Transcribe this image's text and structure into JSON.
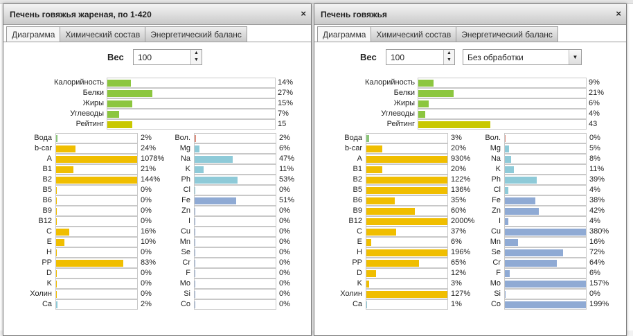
{
  "colors": {
    "macro": "#8cc63f",
    "rating": "#c9c800",
    "vitamin": "#f0be00",
    "water": "#8cc67a",
    "ash": "#e09080",
    "mineral_light": "#8ecad8",
    "mineral_dark": "#8faad4"
  },
  "windows": [
    {
      "title": "Печень говяжья жареная, по 1-420",
      "close": "×",
      "tabs": [
        "Диаграмма",
        "Химический состав",
        "Энергетический баланс"
      ],
      "weight_label": "Вес",
      "weight_value": "100",
      "processing": null,
      "macro": [
        {
          "label": "Калорийность",
          "value": 14,
          "text": "14%"
        },
        {
          "label": "Белки",
          "value": 27,
          "text": "27%"
        },
        {
          "label": "Жиры",
          "value": 15,
          "text": "15%"
        },
        {
          "label": "Углеводы",
          "value": 7,
          "text": "7%"
        },
        {
          "label": "Рейтинг",
          "value": 15,
          "text": "15",
          "rating": true
        }
      ],
      "left": [
        [
          "Вода",
          2,
          "water"
        ],
        [
          "b-car",
          24
        ],
        [
          "A",
          1078
        ],
        [
          "B1",
          21
        ],
        [
          "B2",
          144
        ],
        [
          "B5",
          0
        ],
        [
          "B6",
          0
        ],
        [
          "B9",
          0
        ],
        [
          "B12",
          0
        ],
        [
          "C",
          16
        ],
        [
          "E",
          10
        ],
        [
          "H",
          0
        ],
        [
          "PP",
          83
        ],
        [
          "D",
          0
        ],
        [
          "K",
          0
        ],
        [
          "Холин",
          0
        ],
        [
          "Ca",
          2,
          "mineral_light"
        ]
      ],
      "right": [
        [
          "Вол.",
          2,
          "ash"
        ],
        [
          "Mg",
          6,
          "mineral_light"
        ],
        [
          "Na",
          47,
          "mineral_light"
        ],
        [
          "K",
          11,
          "mineral_light"
        ],
        [
          "Ph",
          53,
          "mineral_light"
        ],
        [
          "Cl",
          0,
          "mineral_light"
        ],
        [
          "Fe",
          51
        ],
        [
          "Zn",
          0
        ],
        [
          "I",
          0
        ],
        [
          "Cu",
          0
        ],
        [
          "Mn",
          0
        ],
        [
          "Se",
          0
        ],
        [
          "Cr",
          0
        ],
        [
          "F",
          0
        ],
        [
          "Mo",
          0
        ],
        [
          "Si",
          0
        ],
        [
          "Co",
          0
        ]
      ]
    },
    {
      "title": "Печень говяжья",
      "close": "×",
      "tabs": [
        "Диаграмма",
        "Химический состав",
        "Энергетический баланс"
      ],
      "weight_label": "Вес",
      "weight_value": "100",
      "processing": "Без обработки",
      "macro": [
        {
          "label": "Калорийность",
          "value": 9,
          "text": "9%"
        },
        {
          "label": "Белки",
          "value": 21,
          "text": "21%"
        },
        {
          "label": "Жиры",
          "value": 6,
          "text": "6%"
        },
        {
          "label": "Углеводы",
          "value": 4,
          "text": "4%"
        },
        {
          "label": "Рейтинг",
          "value": 43,
          "text": "43",
          "rating": true
        }
      ],
      "left": [
        [
          "Вода",
          3,
          "water"
        ],
        [
          "b-car",
          20
        ],
        [
          "A",
          930
        ],
        [
          "B1",
          20
        ],
        [
          "B2",
          122
        ],
        [
          "B5",
          136
        ],
        [
          "B6",
          35
        ],
        [
          "B9",
          60
        ],
        [
          "B12",
          2000
        ],
        [
          "C",
          37
        ],
        [
          "E",
          6
        ],
        [
          "H",
          196
        ],
        [
          "PP",
          65
        ],
        [
          "D",
          12
        ],
        [
          "K",
          3
        ],
        [
          "Холин",
          127
        ],
        [
          "Ca",
          1,
          "mineral_light"
        ]
      ],
      "right": [
        [
          "Вол.",
          0,
          "ash"
        ],
        [
          "Mg",
          5,
          "mineral_light"
        ],
        [
          "Na",
          8,
          "mineral_light"
        ],
        [
          "K",
          11,
          "mineral_light"
        ],
        [
          "Ph",
          39,
          "mineral_light"
        ],
        [
          "Cl",
          4,
          "mineral_light"
        ],
        [
          "Fe",
          38
        ],
        [
          "Zn",
          42
        ],
        [
          "I",
          4
        ],
        [
          "Cu",
          380
        ],
        [
          "Mn",
          16
        ],
        [
          "Se",
          72
        ],
        [
          "Cr",
          64
        ],
        [
          "F",
          6
        ],
        [
          "Mo",
          157
        ],
        [
          "Si",
          0
        ],
        [
          "Co",
          199
        ]
      ]
    }
  ]
}
